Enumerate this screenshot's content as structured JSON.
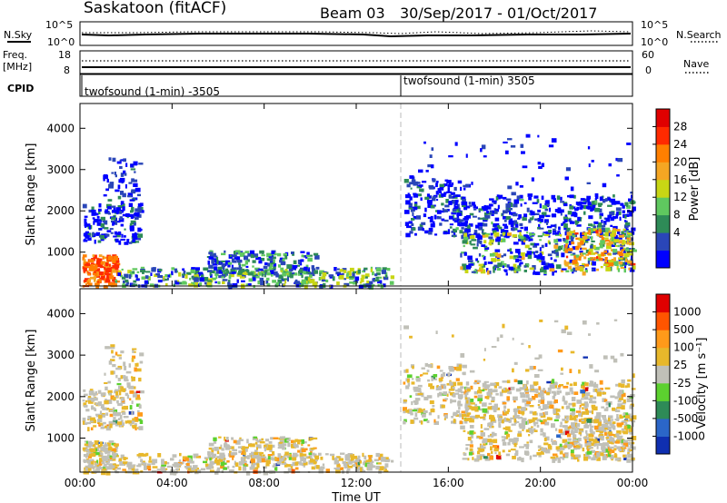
{
  "header": {
    "station": "Saskatoon (fitACF)",
    "beam": "Beam 03",
    "date_range": "30/Sep/2017 - 01/Oct/2017"
  },
  "aux_panels": {
    "nsky_label": "N.Sky",
    "nsearch_label": "N.Search",
    "noise_ticks": [
      "10^5",
      "10^0"
    ],
    "freq_label_1": "Freq.",
    "freq_label_2": "[MHz]",
    "freq_ticks": [
      "18",
      "8"
    ],
    "nave_label": "Nave",
    "nave_ticks": [
      "60",
      "0"
    ],
    "cpid_label": "CPID",
    "cpid_segments": [
      {
        "name": "twofsound (1-min) -3505",
        "start_hour": 0
      },
      {
        "name": "twofsound (1-min) 3505",
        "start_hour": 14
      }
    ]
  },
  "chart_data": [
    {
      "type": "heatmap",
      "panel": "power",
      "ylabel": "Slant Range [km]",
      "yticks": [
        1000,
        2000,
        3000,
        4000
      ],
      "ylim": [
        180,
        4600
      ],
      "xlim_hours": [
        0,
        24
      ],
      "colorbar_label": "Power [dB]",
      "colorbar_ticks": [
        "28",
        "24",
        "20",
        "16",
        "12",
        "8",
        "4"
      ],
      "colorbar_colors": [
        "#0000ff",
        "#2a46b8",
        "#2e8b57",
        "#5fc85f",
        "#c8d614",
        "#f5a623",
        "#ff7f00",
        "#ff2a00",
        "#e00000"
      ]
    },
    {
      "type": "heatmap",
      "panel": "velocity",
      "ylabel": "Slant Range [km]",
      "yticks": [
        1000,
        2000,
        3000,
        4000
      ],
      "ylim": [
        180,
        4600
      ],
      "xlim_hours": [
        0,
        24
      ],
      "colorbar_label": "Velocity [m s⁻¹]",
      "colorbar_ticks": [
        "1000",
        "500",
        "100",
        "25",
        "-25",
        "-100",
        "-500",
        "-1000"
      ],
      "colorbar_colors": [
        "#0f2fb0",
        "#2b66c8",
        "#2e8b57",
        "#5cd12f",
        "#c0c0b8",
        "#e8b82b",
        "#ff9a1a",
        "#ff5500",
        "#e00000"
      ],
      "xlabel": "Time UT",
      "xticks": [
        "00:00",
        "04:00",
        "08:00",
        "12:00",
        "16:00",
        "20:00",
        "00:00"
      ]
    }
  ]
}
